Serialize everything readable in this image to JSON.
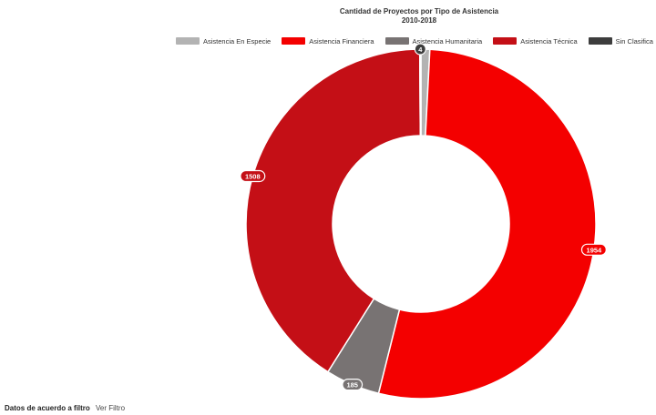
{
  "chart_data": {
    "type": "pie",
    "title": "Cantidad de Proyectos por Tipo de Asistencia",
    "subtitle": "2010-2018",
    "donut": true,
    "legend_position": "top",
    "categories": [
      "Asistencia En Especie",
      "Asistencia Financiera",
      "Asistencia Humanitaria",
      "Asistencia Técnica",
      "Sin Clasifica"
    ],
    "values": [
      30,
      1954,
      185,
      1508,
      4
    ],
    "data_labels": [
      "",
      "1954",
      "185",
      "1508",
      "4"
    ],
    "colors": [
      "#b3b3b3",
      "#f40000",
      "#787373",
      "#c40f16",
      "#3d3d3d"
    ]
  },
  "footer": {
    "label": "Datos de acuerdo a filtro",
    "link": "Ver Filtro"
  }
}
